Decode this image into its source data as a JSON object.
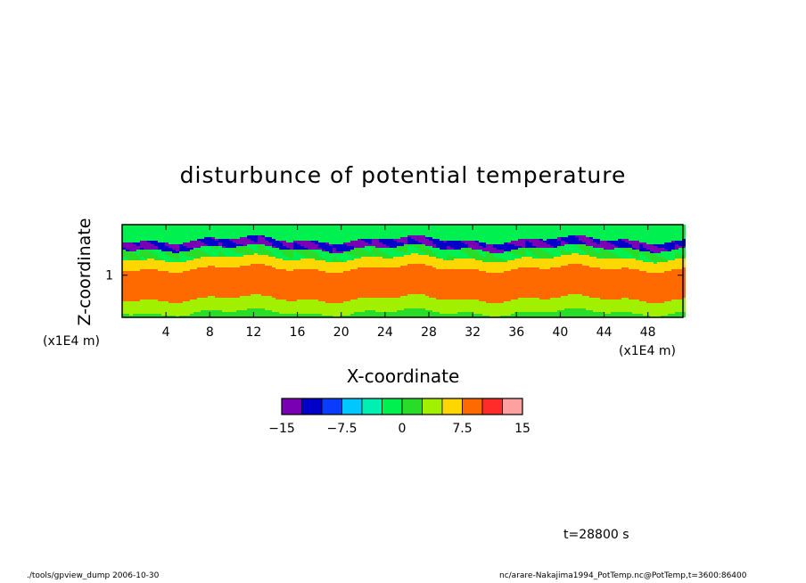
{
  "chart_data": {
    "type": "heatmap",
    "title": "disturbunce of potential temperature",
    "xlabel": "X-coordinate",
    "ylabel": "Z-coordinate",
    "x_unit": "(x1E4 m)",
    "y_unit": "(x1E4 m)",
    "xlim": [
      0,
      51.2
    ],
    "ylim": [
      0.5,
      1.6
    ],
    "x_ticks": [
      4,
      8,
      12,
      16,
      20,
      24,
      28,
      32,
      36,
      40,
      44,
      48
    ],
    "y_ticks": [
      1
    ],
    "colorbar": {
      "levels": [
        -15,
        -12.5,
        -10,
        -7.5,
        -5,
        -2.5,
        0,
        2.5,
        5,
        7.5,
        10,
        12.5,
        15
      ],
      "tick_values": [
        -15,
        -7.5,
        0,
        7.5,
        15
      ],
      "tick_labels": [
        "−15",
        "−7.5",
        "0",
        "7.5",
        "15"
      ],
      "colors": [
        "#7a00b4",
        "#0000c8",
        "#0a3cff",
        "#00c8ff",
        "#00f0b4",
        "#00f050",
        "#28dc28",
        "#a0f000",
        "#ffd700",
        "#ff6a00",
        "#ff2a2a",
        "#ffa0a0"
      ]
    },
    "approx_bands": [
      {
        "z_from": 0.5,
        "z_to": 0.56,
        "value_range": [
          0,
          2.5
        ]
      },
      {
        "z_from": 0.56,
        "z_to": 0.72,
        "value_range": [
          2.5,
          5
        ]
      },
      {
        "z_from": 0.72,
        "z_to": 1.08,
        "value_range": [
          7.5,
          10
        ]
      },
      {
        "z_from": 1.08,
        "z_to": 1.2,
        "value_range": [
          5,
          7.5
        ]
      },
      {
        "z_from": 1.2,
        "z_to": 1.32,
        "value_range": [
          -2.5,
          2.5
        ]
      },
      {
        "z_from": 1.32,
        "z_to": 1.42,
        "value_range": [
          -15,
          -10
        ]
      },
      {
        "z_from": 1.42,
        "z_to": 1.6,
        "value_range": [
          -5,
          2.5
        ]
      }
    ]
  },
  "annotations": {
    "time": "t=28800 s",
    "footer_left": "./tools/gpview_dump   2006-10-30",
    "footer_right": "nc/arare-Nakajima1994_PotTemp.nc@PotTemp,t=3600:86400"
  }
}
